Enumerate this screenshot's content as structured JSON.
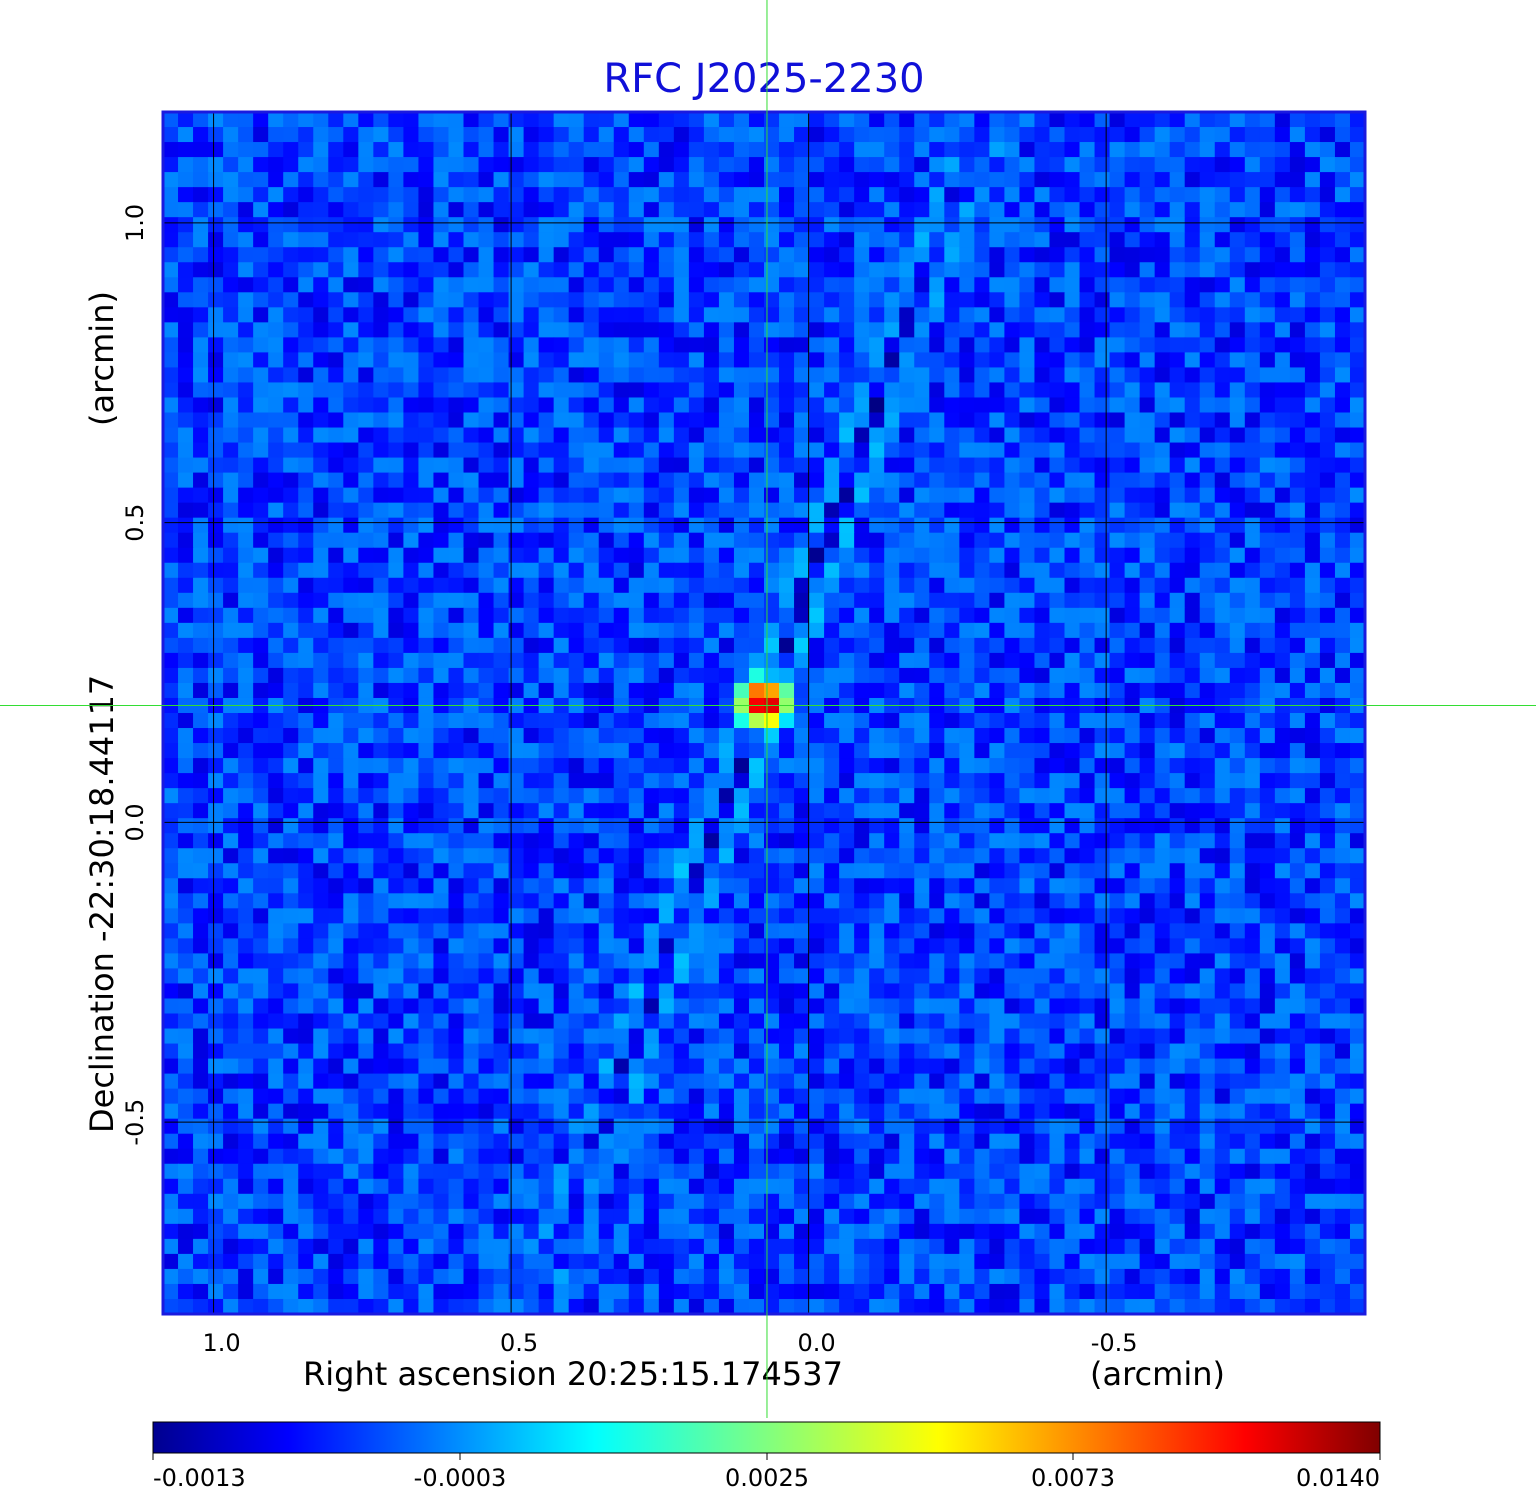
{
  "chart_data": {
    "type": "heatmap",
    "title": "RFC J2025-2230",
    "xlabel": "Right ascension  20:25:15.174537",
    "xlabel_unit": "(arcmin)",
    "ylabel": "Declination  -22:30:18.44117",
    "ylabel_unit": "(arcmin)",
    "xlim": [
      1.085,
      -0.935
    ],
    "ylim": [
      -0.82,
      1.185
    ],
    "x_ticks": [
      {
        "value": 1.0,
        "label": "1.0"
      },
      {
        "value": 0.5,
        "label": "0.5"
      },
      {
        "value": 0.0,
        "label": "0.0"
      },
      {
        "value": -0.5,
        "label": "-0.5"
      }
    ],
    "y_ticks": [
      {
        "value": 1.0,
        "label": "1.0"
      },
      {
        "value": 0.5,
        "label": "0.5"
      },
      {
        "value": 0.0,
        "label": "0.0"
      },
      {
        "value": -0.5,
        "label": "-0.5"
      }
    ],
    "grid": true,
    "crosshair": {
      "x": 0.07,
      "y": 0.195,
      "color": "#33dd33"
    },
    "source_peak": {
      "x": 0.075,
      "y": 0.2,
      "value": 0.014
    },
    "colormap": "jet",
    "colorbar": {
      "placement": "bottom",
      "ticks": [
        "-0.0013",
        "-0.0003",
        "0.0025",
        "0.0073",
        "0.0140"
      ]
    },
    "frame_color": "#1a1adf"
  }
}
